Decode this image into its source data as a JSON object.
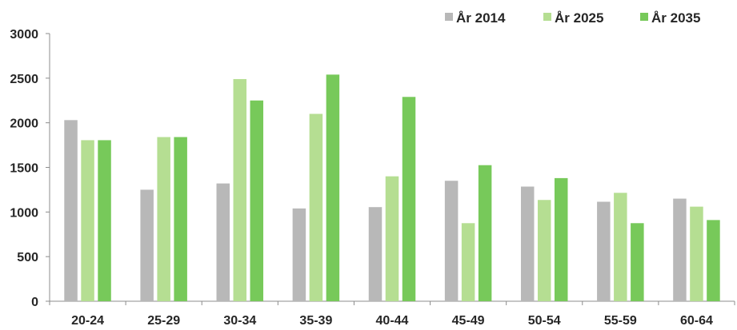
{
  "chart_data": {
    "type": "bar",
    "categories": [
      "20-24",
      "25-29",
      "30-34",
      "35-39",
      "40-44",
      "45-49",
      "50-54",
      "55-59",
      "60-64"
    ],
    "series": [
      {
        "name": "År 2014",
        "color": "#b8b8b8",
        "values": [
          2030,
          1250,
          1320,
          1040,
          1055,
          1350,
          1285,
          1115,
          1150
        ]
      },
      {
        "name": "År 2025",
        "color": "#b5de92",
        "values": [
          1805,
          1840,
          2490,
          2100,
          1400,
          875,
          1135,
          1215,
          1060
        ]
      },
      {
        "name": "År 2035",
        "color": "#77c95a",
        "values": [
          1805,
          1840,
          2250,
          2540,
          2290,
          1525,
          1380,
          875,
          910
        ]
      }
    ],
    "yticks": [
      "0",
      "500",
      "1000",
      "1500",
      "2000",
      "2500",
      "3000"
    ],
    "ylim": [
      0,
      3000
    ],
    "grid": false,
    "legend_position": "top-right",
    "title": "",
    "xlabel": "",
    "ylabel": ""
  }
}
